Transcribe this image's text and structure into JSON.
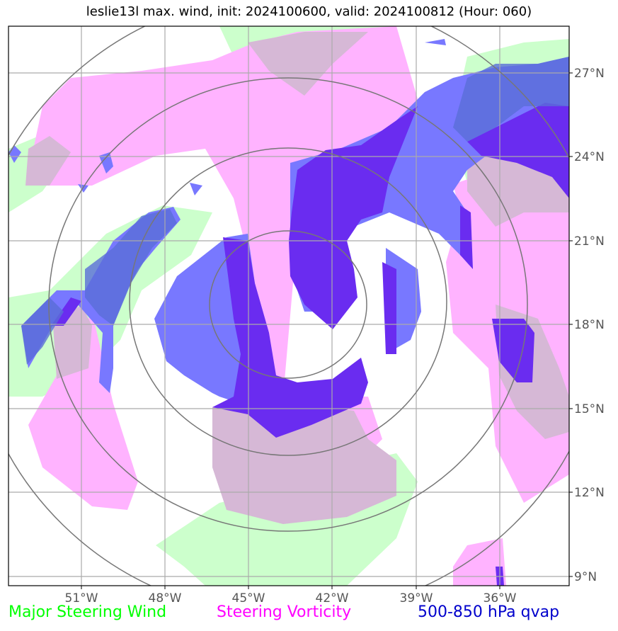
{
  "title": "leslie13l max. wind, init: 2024100600, valid: 2024100812 (Hour: 060)",
  "longitude_labels": [
    "51°W",
    "48°W",
    "45°W",
    "42°W",
    "39°W",
    "36°W"
  ],
  "latitude_labels": [
    "27°N",
    "24°N",
    "21°N",
    "18°N",
    "15°N",
    "12°N",
    "9°N"
  ],
  "legend": [
    {
      "label": "Major Steering Wind",
      "color": "#00ff00"
    },
    {
      "label": "Steering Vorticity",
      "color": "#ff00ff"
    },
    {
      "label": "500-850 hPa qvap",
      "color": "#0000cc"
    }
  ],
  "colors": {
    "steering_wind": "#ccffcc",
    "steering_vorticity": "#ffb3ff",
    "qvap_light": "#7878ff",
    "qvap_dark": "#6a2cf0",
    "overlap": "#d6b8d6",
    "grid": "#aaaaaa",
    "range_rings": "#777777"
  }
}
